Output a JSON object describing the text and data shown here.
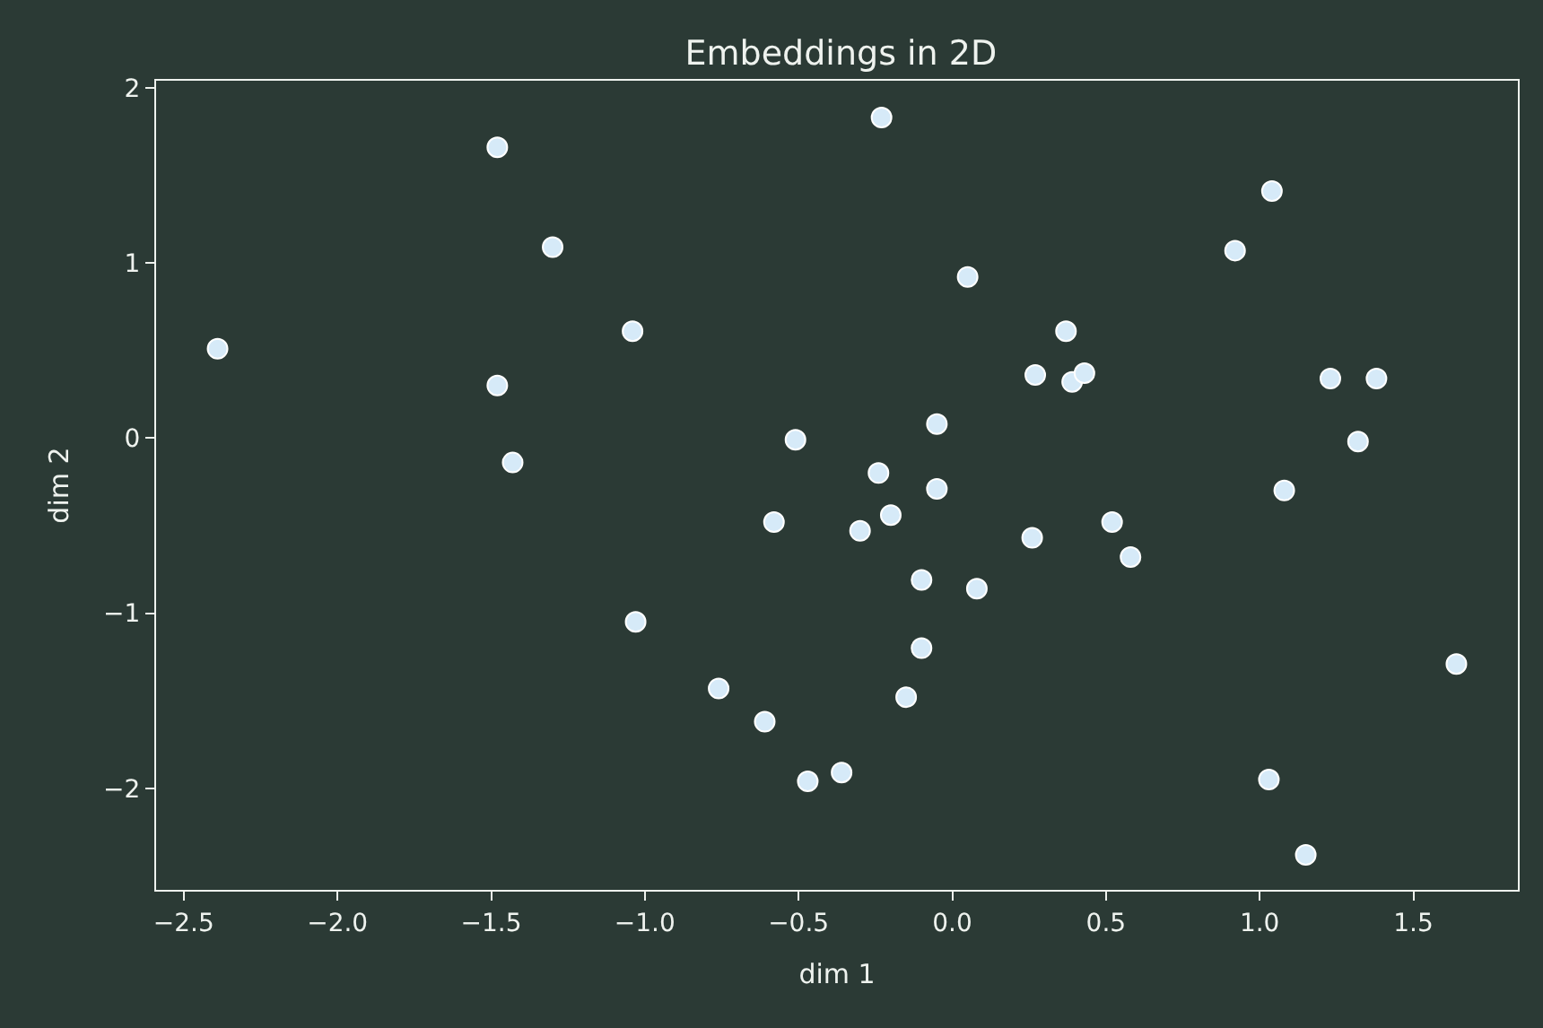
{
  "chart_data": {
    "type": "scatter",
    "title": "Embeddings in 2D",
    "xlabel": "dim 1",
    "ylabel": "dim 2",
    "x": [
      -2.39,
      -1.48,
      -1.3,
      -1.48,
      -1.43,
      -1.04,
      -1.03,
      -0.51,
      -0.58,
      -0.76,
      -0.61,
      -0.47,
      -0.36,
      -0.23,
      -0.24,
      -0.2,
      -0.3,
      -0.05,
      -0.05,
      -0.1,
      -0.1,
      -0.15,
      0.08,
      0.05,
      0.27,
      0.26,
      0.37,
      0.39,
      0.43,
      0.52,
      0.58,
      0.92,
      1.04,
      1.08,
      1.23,
      1.38,
      1.32,
      1.03,
      1.15,
      1.64
    ],
    "values": [
      0.51,
      1.66,
      1.09,
      0.3,
      -0.14,
      0.61,
      -1.05,
      -0.01,
      -0.48,
      -1.43,
      -1.62,
      -1.96,
      -1.91,
      1.83,
      -0.2,
      -0.44,
      -0.53,
      0.08,
      -0.29,
      -0.81,
      -1.2,
      -1.48,
      -0.86,
      0.92,
      0.36,
      -0.57,
      0.61,
      0.32,
      0.37,
      -0.48,
      -0.68,
      1.07,
      1.41,
      -0.3,
      0.34,
      0.34,
      -0.02,
      -1.95,
      -2.38,
      -1.29
    ],
    "color": "#d6eaf8",
    "marker": "circle",
    "grid": false,
    "xlim": [
      -2.59,
      1.84
    ],
    "ylim": [
      -2.58,
      2.04
    ],
    "xticks": [
      {
        "value": -2.5,
        "label": "−2.5"
      },
      {
        "value": -2.0,
        "label": "−2.0"
      },
      {
        "value": -1.5,
        "label": "−1.5"
      },
      {
        "value": -1.0,
        "label": "−1.0"
      },
      {
        "value": -0.5,
        "label": "−0.5"
      },
      {
        "value": 0.0,
        "label": "0.0"
      },
      {
        "value": 0.5,
        "label": "0.5"
      },
      {
        "value": 1.0,
        "label": "1.0"
      },
      {
        "value": 1.5,
        "label": "1.5"
      }
    ],
    "yticks": [
      {
        "value": -2,
        "label": "−2"
      },
      {
        "value": -1,
        "label": "−1"
      },
      0,
      1,
      2
    ]
  }
}
